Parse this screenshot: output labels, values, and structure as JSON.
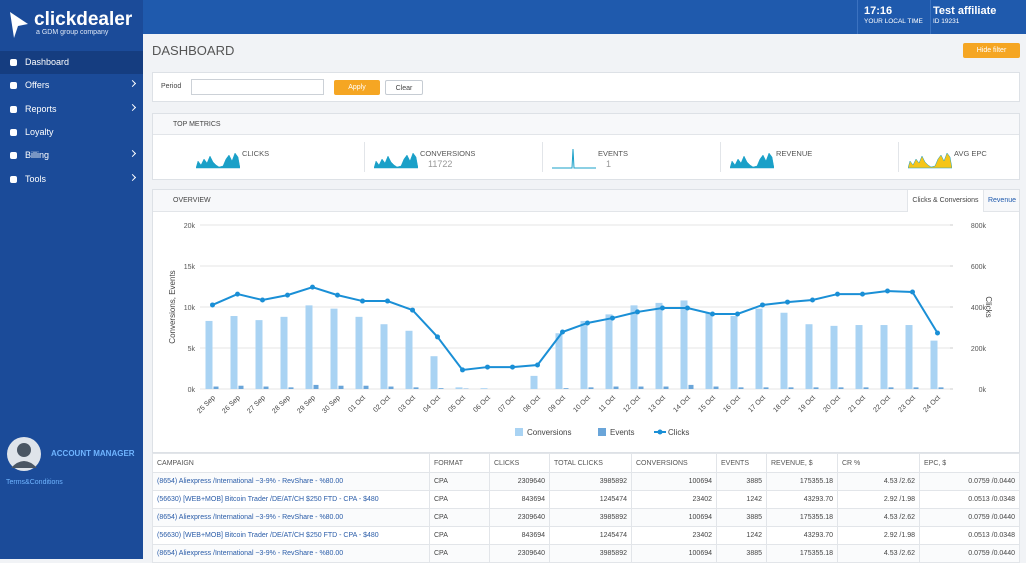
{
  "header": {
    "time": "17:16",
    "time_label": "YOUR LOCAL TIME",
    "user": "Test affiliate",
    "user_id": "ID 19231"
  },
  "sidebar": {
    "logo": "clickdealer",
    "logo_sub": "a GDM group company",
    "menu": [
      "Dashboard",
      "Offers",
      "Reports",
      "Loyalty",
      "Billing",
      "Tools"
    ],
    "account_manager": "ACCOUNT MANAGER",
    "terms": "Terms&Conditions"
  },
  "page": {
    "title": "DASHBOARD",
    "hide_filter": "Hide filter"
  },
  "filter": {
    "period": "Period",
    "apply": "Apply",
    "clear": "Clear"
  },
  "metrics": {
    "title": "TOP METRICS",
    "items": [
      {
        "label": "CLICKS"
      },
      {
        "label": "CONVERSIONS",
        "value": "11722"
      },
      {
        "label": "EVENTS",
        "value": "1"
      },
      {
        "label": "REVENUE"
      },
      {
        "label": "AVG EPC"
      }
    ]
  },
  "tabs": [
    "Clicks & Conversions",
    "Revenue"
  ],
  "chart_data": {
    "type": "combo",
    "title": "OVERVIEW",
    "y_label": "Conversions, Events",
    "y2_label": "Clicks",
    "categories": [
      "25 Sep",
      "26 Sep",
      "27 Sep",
      "28 Sep",
      "29 Sep",
      "30 Sep",
      "01 Oct",
      "02 Oct",
      "03 Oct",
      "04 Oct",
      "05 Oct",
      "06 Oct",
      "07 Oct",
      "08 Oct",
      "09 Oct",
      "10 Oct",
      "11 Oct",
      "12 Oct",
      "13 Oct",
      "14 Oct",
      "15 Oct",
      "16 Oct",
      "17 Oct",
      "18 Oct",
      "19 Oct",
      "20 Oct",
      "21 Oct",
      "22 Oct",
      "23 Oct",
      "24 Oct"
    ],
    "series": [
      {
        "name": "Conversions",
        "color": "#a9d3f3",
        "kind": "bar",
        "values": [
          8300,
          8900,
          8400,
          8800,
          10200,
          9800,
          8800,
          7900,
          7100,
          4000,
          200,
          100,
          0,
          1600,
          6800,
          8300,
          9100,
          10200,
          10500,
          10800,
          9300,
          8900,
          9800,
          9300,
          7900,
          7700,
          7800,
          7800,
          7800,
          5900
        ]
      },
      {
        "name": "Events",
        "color": "#6aa5d9",
        "kind": "bar",
        "values": [
          300,
          400,
          300,
          200,
          500,
          400,
          400,
          300,
          200,
          100,
          50,
          0,
          0,
          0,
          100,
          200,
          300,
          300,
          300,
          500,
          300,
          200,
          200,
          200,
          200,
          200,
          200,
          200,
          200,
          200
        ]
      },
      {
        "name": "Clicks",
        "color": "#1a8fd6",
        "kind": "line",
        "axis": "y2",
        "values": [
          410000,
          463000,
          434000,
          458000,
          497000,
          458000,
          429000,
          429000,
          385000,
          254000,
          93000,
          107000,
          107000,
          117000,
          278000,
          322000,
          346000,
          376000,
          395000,
          395000,
          366000,
          366000,
          410000,
          424000,
          434000,
          463000,
          463000,
          478000,
          473000,
          273000
        ]
      }
    ],
    "ylim": [
      0,
      20000
    ],
    "yticks": [
      {
        "value": 0,
        "label": "0k"
      },
      {
        "value": 5000,
        "label": "5k"
      },
      {
        "value": 10000,
        "label": "10k"
      },
      {
        "value": 15000,
        "label": "15k"
      },
      {
        "value": 20000,
        "label": "20k"
      }
    ],
    "y2lim": [
      0,
      800000
    ],
    "y2ticks": [
      {
        "value": 0,
        "label": "0k"
      },
      {
        "value": 200000,
        "label": "200k"
      },
      {
        "value": 400000,
        "label": "400k"
      },
      {
        "value": 600000,
        "label": "600k"
      },
      {
        "value": 800000,
        "label": "800k"
      }
    ],
    "grid": true,
    "legend": "bottom"
  },
  "table": {
    "headers": [
      "CAMPAIGN",
      "FORMAT",
      "CLICKS",
      "TOTAL CLICKS",
      "CONVERSIONS",
      "EVENTS",
      "REVENUE, $",
      "CR %",
      "EPC, $"
    ],
    "rows": [
      [
        "(8654) Aliexpress /International ~3-9% - RevShare - %80.00",
        "CPA",
        "2309640",
        "3985892",
        "100694",
        "3885",
        "175355.18",
        "4.53 /2.62",
        "0.0759 /0.0440"
      ],
      [
        "(56630) [WEB+MOB] Bitcoin Trader /DE/AT/CH $250 FTD - CPA - $480",
        "CPA",
        "843694",
        "1245474",
        "23402",
        "1242",
        "43293.70",
        "2.92 /1.98",
        "0.0513 /0.0348"
      ],
      [
        "(8654) Aliexpress /International ~3-9% - RevShare - %80.00",
        "CPA",
        "2309640",
        "3985892",
        "100694",
        "3885",
        "175355.18",
        "4.53 /2.62",
        "0.0759 /0.0440"
      ],
      [
        "(56630) [WEB+MOB] Bitcoin Trader /DE/AT/CH $250 FTD - CPA - $480",
        "CPA",
        "843694",
        "1245474",
        "23402",
        "1242",
        "43293.70",
        "2.92 /1.98",
        "0.0513 /0.0348"
      ],
      [
        "(8654) Aliexpress /International ~3-9% - RevShare - %80.00",
        "CPA",
        "2309640",
        "3985892",
        "100694",
        "3885",
        "175355.18",
        "4.53 /2.62",
        "0.0759 /0.0440"
      ]
    ]
  }
}
